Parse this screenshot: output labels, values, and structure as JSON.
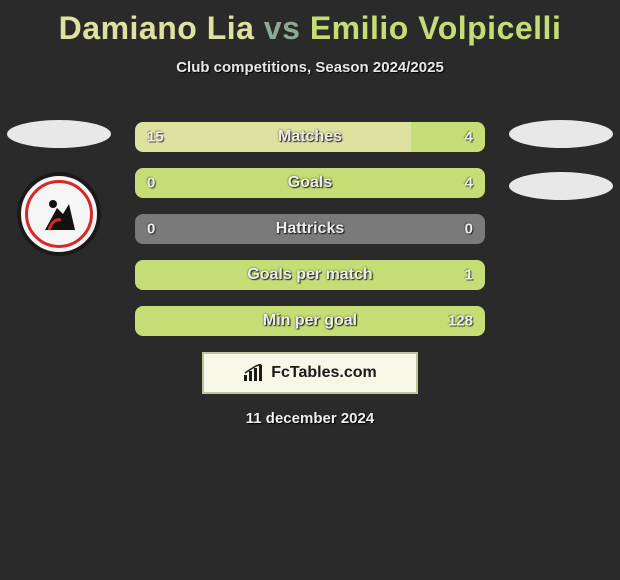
{
  "header": {
    "player1": "Damiano Lia",
    "vs": "vs",
    "player2": "Emilio Volpicelli",
    "subtitle": "Club competitions, Season 2024/2025"
  },
  "colors": {
    "player1_bar": "#dee2a0",
    "player2_bar": "#c5dd74",
    "neutral_bar": "#7a7a7a",
    "title_p1": "#dee2a0",
    "title_vs": "#8fa896",
    "title_p2": "#c5dd74",
    "background": "#2a2a2a",
    "border_accent": "#bfc49a"
  },
  "stats": [
    {
      "label": "Matches",
      "p1_val": "15",
      "p2_val": "4",
      "p1": 15,
      "p2": 4,
      "neutral": false
    },
    {
      "label": "Goals",
      "p1_val": "0",
      "p2_val": "4",
      "p1": 0,
      "p2": 4,
      "neutral": false
    },
    {
      "label": "Hattricks",
      "p1_val": "0",
      "p2_val": "0",
      "p1": 0,
      "p2": 0,
      "neutral": true
    },
    {
      "label": "Goals per match",
      "p1_val": "",
      "p2_val": "1",
      "p1": 0,
      "p2": 1,
      "neutral": false
    },
    {
      "label": "Min per goal",
      "p1_val": "",
      "p2_val": "128",
      "p1": 0,
      "p2": 128,
      "neutral": false
    }
  ],
  "footer": {
    "brand": "FcTables.com",
    "date": "11 december 2024"
  }
}
